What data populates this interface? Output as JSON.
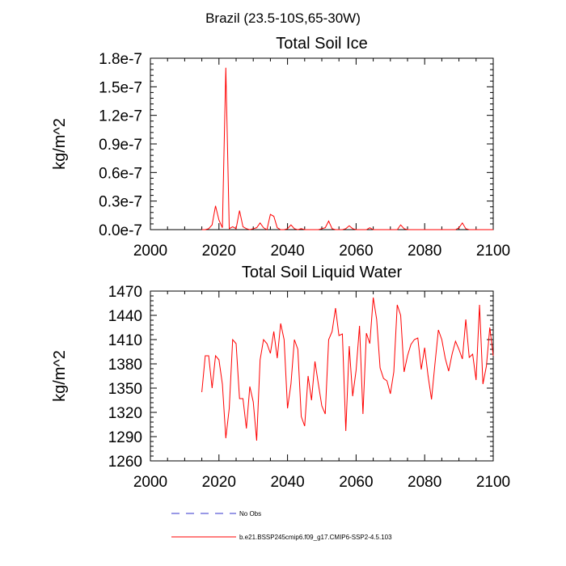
{
  "figure": {
    "title": "Brazil (23.5-10S,65-30W)"
  },
  "chart_data": [
    {
      "type": "line",
      "title": "Total Soil Ice",
      "xlabel": "",
      "ylabel": "kg/m^2",
      "xlim": [
        2000,
        2100
      ],
      "ylim": [
        0.0,
        1.8e-07
      ],
      "xticks": [
        2000,
        2020,
        2040,
        2060,
        2080,
        2100
      ],
      "xtick_labels": [
        "2000",
        "2020",
        "2040",
        "2060",
        "2080",
        "2100"
      ],
      "yticks": [
        0.0,
        3e-08,
        6e-08,
        9e-08,
        1.2e-07,
        1.5e-07,
        1.8e-07
      ],
      "ytick_labels": [
        "0.0e-7",
        "0.3e-7",
        "0.6e-7",
        "0.9e-7",
        "1.2e-7",
        "1.5e-7",
        "1.8e-7"
      ],
      "color": "#ff0000",
      "x": [
        2015,
        2016,
        2017,
        2018,
        2019,
        2020,
        2021,
        2022,
        2023,
        2024,
        2025,
        2026,
        2027,
        2028,
        2029,
        2030,
        2031,
        2032,
        2033,
        2034,
        2035,
        2036,
        2037,
        2038,
        2039,
        2040,
        2041,
        2042,
        2043,
        2044,
        2045,
        2046,
        2047,
        2048,
        2049,
        2050,
        2051,
        2052,
        2053,
        2054,
        2055,
        2056,
        2057,
        2058,
        2059,
        2060,
        2061,
        2062,
        2063,
        2064,
        2065,
        2066,
        2067,
        2068,
        2069,
        2070,
        2071,
        2072,
        2073,
        2074,
        2075,
        2076,
        2077,
        2078,
        2079,
        2080,
        2081,
        2082,
        2083,
        2084,
        2085,
        2086,
        2087,
        2088,
        2089,
        2090,
        2091,
        2092,
        2093,
        2094,
        2095,
        2096,
        2097,
        2098,
        2099,
        2100
      ],
      "y": [
        0,
        0,
        1e-09,
        5e-09,
        2.5e-08,
        1e-08,
        2e-09,
        1.7e-07,
        1e-09,
        3e-09,
        1e-09,
        2e-08,
        3e-09,
        1e-09,
        0,
        1e-09,
        2e-09,
        7e-09,
        2e-09,
        0,
        1.6e-08,
        1.4e-08,
        2e-09,
        0,
        0,
        1e-09,
        5e-09,
        1e-09,
        0,
        1e-09,
        0,
        0,
        0,
        0,
        0,
        1e-09,
        2e-09,
        9e-09,
        1e-09,
        0,
        0,
        0,
        1e-09,
        4e-09,
        1e-09,
        0,
        0,
        0,
        0,
        2e-09,
        0,
        0,
        0,
        0,
        0,
        0,
        0,
        0,
        5e-09,
        1e-09,
        0,
        0,
        0,
        0,
        0,
        0,
        0,
        0,
        0,
        0,
        0,
        0,
        0,
        0,
        0,
        2e-09,
        7e-09,
        1e-09,
        0,
        0,
        0,
        0,
        0,
        0,
        0,
        0
      ]
    },
    {
      "type": "line",
      "title": "Total Soil Liquid Water",
      "xlabel": "",
      "ylabel": "kg/m^2",
      "xlim": [
        2000,
        2100
      ],
      "ylim": [
        1260,
        1470
      ],
      "xticks": [
        2000,
        2020,
        2040,
        2060,
        2080,
        2100
      ],
      "xtick_labels": [
        "2000",
        "2020",
        "2040",
        "2060",
        "2080",
        "2100"
      ],
      "yticks": [
        1260,
        1290,
        1320,
        1350,
        1380,
        1410,
        1440,
        1470
      ],
      "ytick_labels": [
        "1260",
        "1290",
        "1320",
        "1350",
        "1380",
        "1410",
        "1440",
        "1470"
      ],
      "color": "#ff0000",
      "x": [
        2015,
        2016,
        2017,
        2018,
        2019,
        2020,
        2021,
        2022,
        2023,
        2024,
        2025,
        2026,
        2027,
        2028,
        2029,
        2030,
        2031,
        2032,
        2033,
        2034,
        2035,
        2036,
        2037,
        2038,
        2039,
        2040,
        2041,
        2042,
        2043,
        2044,
        2045,
        2046,
        2047,
        2048,
        2049,
        2050,
        2051,
        2052,
        2053,
        2054,
        2055,
        2056,
        2057,
        2058,
        2059,
        2060,
        2061,
        2062,
        2063,
        2064,
        2065,
        2066,
        2067,
        2068,
        2069,
        2070,
        2071,
        2072,
        2073,
        2074,
        2075,
        2076,
        2077,
        2078,
        2079,
        2080,
        2081,
        2082,
        2083,
        2084,
        2085,
        2086,
        2087,
        2088,
        2089,
        2090,
        2091,
        2092,
        2093,
        2094,
        2095,
        2096,
        2097,
        2098,
        2099,
        2100
      ],
      "y": [
        1345,
        1390,
        1390,
        1350,
        1390,
        1385,
        1355,
        1288,
        1325,
        1410,
        1405,
        1337,
        1337,
        1300,
        1352,
        1333,
        1285,
        1385,
        1410,
        1405,
        1393,
        1420,
        1387,
        1430,
        1410,
        1325,
        1355,
        1410,
        1398,
        1315,
        1303,
        1365,
        1335,
        1383,
        1355,
        1328,
        1318,
        1410,
        1420,
        1449,
        1415,
        1417,
        1297,
        1402,
        1340,
        1372,
        1427,
        1318,
        1418,
        1405,
        1462,
        1435,
        1375,
        1362,
        1359,
        1343,
        1370,
        1453,
        1440,
        1370,
        1390,
        1404,
        1410,
        1412,
        1373,
        1400,
        1365,
        1336,
        1380,
        1422,
        1410,
        1387,
        1371,
        1392,
        1408,
        1398,
        1386,
        1435,
        1388,
        1392,
        1360,
        1453,
        1355,
        1377,
        1425,
        1390
      ]
    }
  ],
  "legend": {
    "items": [
      {
        "label": "No Obs",
        "color": "#3333cc",
        "dash": true
      },
      {
        "label": "b.e21.BSSP245cmip6.f09_g17.CMIP6-SSP2-4.5.103",
        "color": "#ff0000",
        "dash": false
      }
    ]
  }
}
